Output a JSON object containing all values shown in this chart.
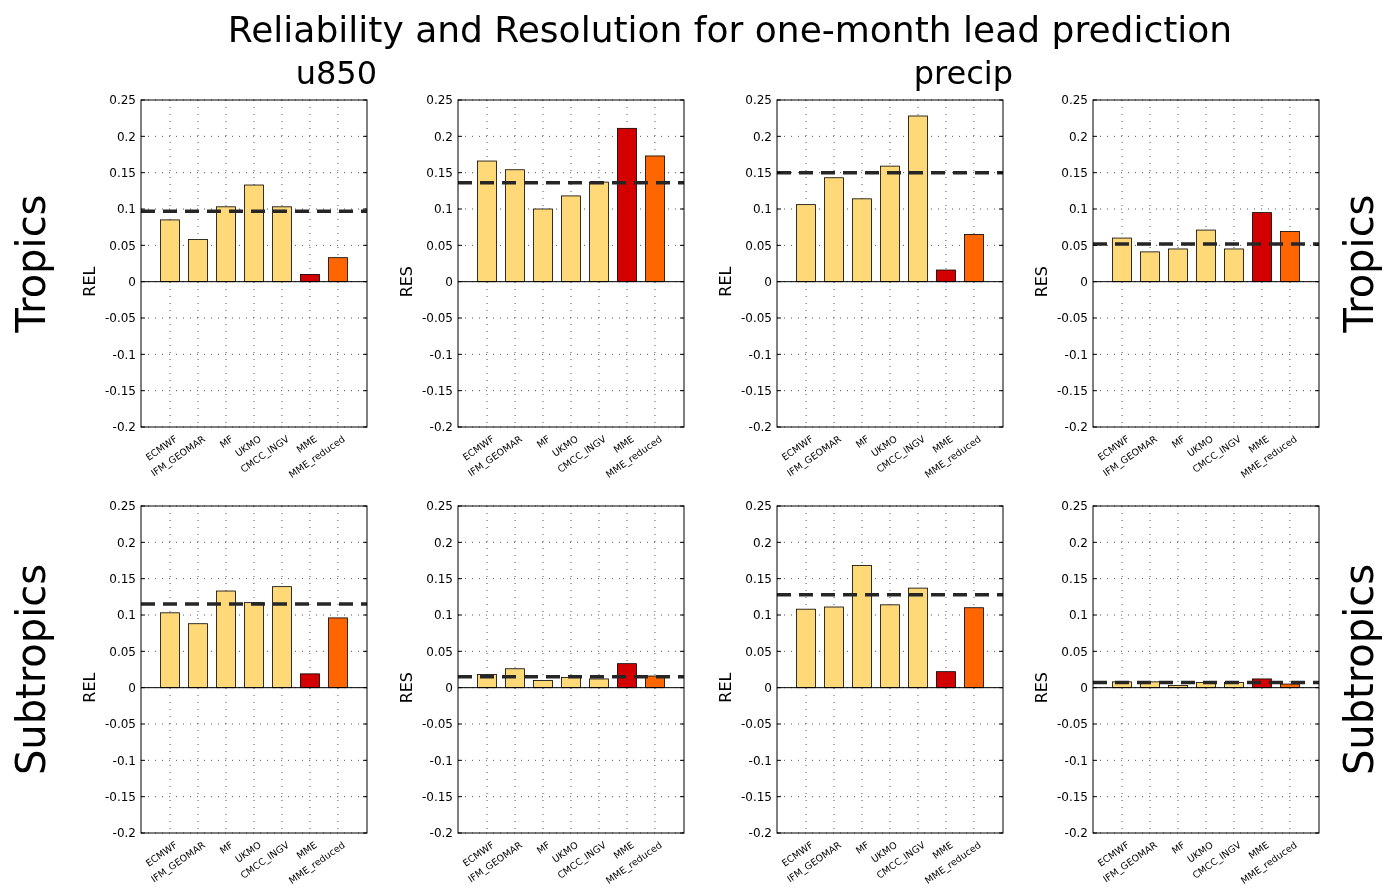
{
  "chart_data": [
    {
      "type": "bar",
      "title": "Reliability and Resolution for one-month lead prediction",
      "subtitle": "u850",
      "ylabel": "REL",
      "annotations": [
        "Tropics"
      ],
      "categories": [
        "ECMWF",
        "IFM_GEOMAR",
        "MF",
        "UKMO",
        "CMCC_INGV",
        "MME",
        "MME_reduced"
      ],
      "values": [
        0.085,
        0.058,
        0.103,
        0.133,
        0.103,
        0.01,
        0.033
      ],
      "colors": [
        "#ffd878",
        "#ffd878",
        "#ffd878",
        "#ffd878",
        "#ffd878",
        "#d40000",
        "#ff6600"
      ],
      "ylim": [
        -0.2,
        0.25
      ],
      "yticks": [
        -0.2,
        -0.15,
        -0.1,
        -0.05,
        0,
        0.05,
        0.1,
        0.15,
        0.2,
        0.25
      ],
      "grid": true,
      "ref_lines": [
        {
          "axis": "y",
          "value": 0.097,
          "color": "#262626",
          "line_style": "dashed"
        }
      ]
    },
    {
      "type": "bar",
      "ylabel": "RES",
      "categories": [
        "ECMWF",
        "IFM_GEOMAR",
        "MF",
        "UKMO",
        "CMCC_INGV",
        "MME",
        "MME_reduced"
      ],
      "values": [
        0.166,
        0.154,
        0.1,
        0.118,
        0.137,
        0.211,
        0.173
      ],
      "colors": [
        "#ffd878",
        "#ffd878",
        "#ffd878",
        "#ffd878",
        "#ffd878",
        "#d40000",
        "#ff6600"
      ],
      "ylim": [
        -0.2,
        0.25
      ],
      "yticks": [
        -0.2,
        -0.15,
        -0.1,
        -0.05,
        0,
        0.05,
        0.1,
        0.15,
        0.2,
        0.25
      ],
      "grid": true,
      "ref_lines": [
        {
          "axis": "y",
          "value": 0.136,
          "color": "#262626",
          "line_style": "dashed"
        }
      ]
    },
    {
      "type": "bar",
      "subtitle": "precip",
      "ylabel": "REL",
      "categories": [
        "ECMWF",
        "IFM_GEOMAR",
        "MF",
        "UKMO",
        "CMCC_INGV",
        "MME",
        "MME_reduced"
      ],
      "values": [
        0.106,
        0.143,
        0.114,
        0.159,
        0.228,
        0.016,
        0.065
      ],
      "colors": [
        "#ffd878",
        "#ffd878",
        "#ffd878",
        "#ffd878",
        "#ffd878",
        "#d40000",
        "#ff6600"
      ],
      "ylim": [
        -0.2,
        0.25
      ],
      "yticks": [
        -0.2,
        -0.15,
        -0.1,
        -0.05,
        0,
        0.05,
        0.1,
        0.15,
        0.2,
        0.25
      ],
      "grid": true,
      "ref_lines": [
        {
          "axis": "y",
          "value": 0.15,
          "color": "#262626",
          "line_style": "dashed"
        }
      ]
    },
    {
      "type": "bar",
      "ylabel": "RES",
      "annotations": [
        "Tropics"
      ],
      "categories": [
        "ECMWF",
        "IFM_GEOMAR",
        "MF",
        "UKMO",
        "CMCC_INGV",
        "MME",
        "MME_reduced"
      ],
      "values": [
        0.06,
        0.041,
        0.045,
        0.071,
        0.045,
        0.095,
        0.069
      ],
      "colors": [
        "#ffd878",
        "#ffd878",
        "#ffd878",
        "#ffd878",
        "#ffd878",
        "#d40000",
        "#ff6600"
      ],
      "ylim": [
        -0.2,
        0.25
      ],
      "yticks": [
        -0.2,
        -0.15,
        -0.1,
        -0.05,
        0,
        0.05,
        0.1,
        0.15,
        0.2,
        0.25
      ],
      "grid": true,
      "ref_lines": [
        {
          "axis": "y",
          "value": 0.052,
          "color": "#262626",
          "line_style": "dashed"
        }
      ]
    },
    {
      "type": "bar",
      "ylabel": "REL",
      "annotations": [
        "Subtropics"
      ],
      "categories": [
        "ECMWF",
        "IFM_GEOMAR",
        "MF",
        "UKMO",
        "CMCC_INGV",
        "MME",
        "MME_reduced"
      ],
      "values": [
        0.103,
        0.088,
        0.133,
        0.117,
        0.139,
        0.019,
        0.096
      ],
      "colors": [
        "#ffd878",
        "#ffd878",
        "#ffd878",
        "#ffd878",
        "#ffd878",
        "#d40000",
        "#ff6600"
      ],
      "ylim": [
        -0.2,
        0.25
      ],
      "yticks": [
        -0.2,
        -0.15,
        -0.1,
        -0.05,
        0,
        0.05,
        0.1,
        0.15,
        0.2,
        0.25
      ],
      "grid": true,
      "ref_lines": [
        {
          "axis": "y",
          "value": 0.115,
          "color": "#262626",
          "line_style": "dashed"
        }
      ]
    },
    {
      "type": "bar",
      "ylabel": "RES",
      "categories": [
        "ECMWF",
        "IFM_GEOMAR",
        "MF",
        "UKMO",
        "CMCC_INGV",
        "MME",
        "MME_reduced"
      ],
      "values": [
        0.018,
        0.026,
        0.01,
        0.014,
        0.012,
        0.033,
        0.016
      ],
      "colors": [
        "#ffd878",
        "#ffd878",
        "#ffd878",
        "#ffd878",
        "#ffd878",
        "#d40000",
        "#ff6600"
      ],
      "ylim": [
        -0.2,
        0.25
      ],
      "yticks": [
        -0.2,
        -0.15,
        -0.1,
        -0.05,
        0,
        0.05,
        0.1,
        0.15,
        0.2,
        0.25
      ],
      "grid": true,
      "ref_lines": [
        {
          "axis": "y",
          "value": 0.015,
          "color": "#262626",
          "line_style": "dashed"
        }
      ]
    },
    {
      "type": "bar",
      "ylabel": "REL",
      "categories": [
        "ECMWF",
        "IFM_GEOMAR",
        "MF",
        "UKMO",
        "CMCC_INGV",
        "MME",
        "MME_reduced"
      ],
      "values": [
        0.108,
        0.111,
        0.168,
        0.114,
        0.137,
        0.022,
        0.11
      ],
      "colors": [
        "#ffd878",
        "#ffd878",
        "#ffd878",
        "#ffd878",
        "#ffd878",
        "#d40000",
        "#ff6600"
      ],
      "ylim": [
        -0.2,
        0.25
      ],
      "yticks": [
        -0.2,
        -0.15,
        -0.1,
        -0.05,
        0,
        0.05,
        0.1,
        0.15,
        0.2,
        0.25
      ],
      "grid": true,
      "ref_lines": [
        {
          "axis": "y",
          "value": 0.128,
          "color": "#262626",
          "line_style": "dashed"
        }
      ]
    },
    {
      "type": "bar",
      "ylabel": "RES",
      "annotations": [
        "Subtropics"
      ],
      "categories": [
        "ECMWF",
        "IFM_GEOMAR",
        "MF",
        "UKMO",
        "CMCC_INGV",
        "MME",
        "MME_reduced"
      ],
      "values": [
        0.008,
        0.008,
        0.003,
        0.007,
        0.007,
        0.012,
        0.005
      ],
      "colors": [
        "#ffd878",
        "#ffd878",
        "#ffd878",
        "#ffd878",
        "#ffd878",
        "#d40000",
        "#ff6600"
      ],
      "ylim": [
        -0.2,
        0.25
      ],
      "yticks": [
        -0.2,
        -0.15,
        -0.1,
        -0.05,
        0,
        0.05,
        0.1,
        0.15,
        0.2,
        0.25
      ],
      "grid": true,
      "ref_lines": [
        {
          "axis": "y",
          "value": 0.007,
          "color": "#262626",
          "line_style": "dashed"
        }
      ]
    }
  ]
}
